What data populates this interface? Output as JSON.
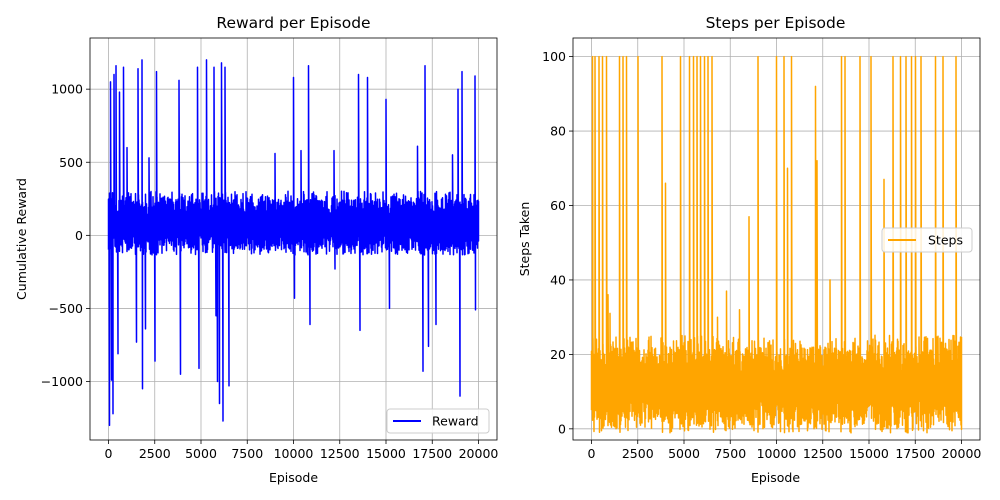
{
  "chart_data": [
    {
      "type": "line",
      "title": "Reward per Episode",
      "xlabel": "Episode",
      "ylabel": "Cumulative Reward",
      "xlim": [
        -1000,
        21000
      ],
      "ylim": [
        -1400,
        1350
      ],
      "xticks": [
        0,
        2500,
        5000,
        7500,
        10000,
        12500,
        15000,
        17500,
        20000
      ],
      "xtick_labels": [
        "0",
        "2500",
        "5000",
        "7500",
        "10000",
        "12500",
        "15000",
        "17500",
        "20000"
      ],
      "yticks": [
        -1000,
        -500,
        0,
        500,
        1000
      ],
      "ytick_labels": [
        "−1000",
        "−500",
        "0",
        "500",
        "1000"
      ],
      "grid": true,
      "legend_position": "lower-right",
      "series": [
        {
          "name": "Reward",
          "color": "#0000ff",
          "episodes": 20000,
          "typical_band": [
            -100,
            250
          ],
          "spikes": [
            {
              "x": 60,
              "y": -1300
            },
            {
              "x": 100,
              "y": 1050
            },
            {
              "x": 150,
              "y": -990
            },
            {
              "x": 250,
              "y": -1220
            },
            {
              "x": 300,
              "y": 1100
            },
            {
              "x": 400,
              "y": 1160
            },
            {
              "x": 500,
              "y": -810
            },
            {
              "x": 600,
              "y": 980
            },
            {
              "x": 800,
              "y": 1150
            },
            {
              "x": 1000,
              "y": 600
            },
            {
              "x": 1500,
              "y": -730
            },
            {
              "x": 1600,
              "y": 1140
            },
            {
              "x": 1800,
              "y": 1200
            },
            {
              "x": 1850,
              "y": -1050
            },
            {
              "x": 2000,
              "y": -640
            },
            {
              "x": 2200,
              "y": 530
            },
            {
              "x": 2500,
              "y": -860
            },
            {
              "x": 2600,
              "y": 1120
            },
            {
              "x": 3800,
              "y": 1060
            },
            {
              "x": 3900,
              "y": -950
            },
            {
              "x": 4800,
              "y": 1150
            },
            {
              "x": 4900,
              "y": -910
            },
            {
              "x": 5300,
              "y": 1200
            },
            {
              "x": 5700,
              "y": 1150
            },
            {
              "x": 5800,
              "y": -550
            },
            {
              "x": 5900,
              "y": -1000
            },
            {
              "x": 6000,
              "y": -1150
            },
            {
              "x": 6100,
              "y": 1180
            },
            {
              "x": 6200,
              "y": -1270
            },
            {
              "x": 6300,
              "y": 1150
            },
            {
              "x": 6500,
              "y": -1030
            },
            {
              "x": 9000,
              "y": 560
            },
            {
              "x": 10000,
              "y": 1080
            },
            {
              "x": 10050,
              "y": -430
            },
            {
              "x": 10400,
              "y": 580
            },
            {
              "x": 10800,
              "y": 1160
            },
            {
              "x": 10900,
              "y": -610
            },
            {
              "x": 12200,
              "y": 580
            },
            {
              "x": 12250,
              "y": -230
            },
            {
              "x": 13500,
              "y": 1100
            },
            {
              "x": 13600,
              "y": -650
            },
            {
              "x": 14000,
              "y": 1080
            },
            {
              "x": 15000,
              "y": 930
            },
            {
              "x": 15200,
              "y": -500
            },
            {
              "x": 16700,
              "y": 610
            },
            {
              "x": 17000,
              "y": -930
            },
            {
              "x": 17100,
              "y": 1160
            },
            {
              "x": 17300,
              "y": -760
            },
            {
              "x": 17700,
              "y": -610
            },
            {
              "x": 18600,
              "y": 550
            },
            {
              "x": 18900,
              "y": 1000
            },
            {
              "x": 19000,
              "y": -1100
            },
            {
              "x": 19100,
              "y": 1120
            },
            {
              "x": 19800,
              "y": 1090
            },
            {
              "x": 19850,
              "y": -510
            }
          ]
        }
      ]
    },
    {
      "type": "line",
      "title": "Steps per Episode",
      "xlabel": "Episode",
      "ylabel": "Steps Taken",
      "xlim": [
        -1000,
        21000
      ],
      "ylim": [
        -3,
        105
      ],
      "xticks": [
        0,
        2500,
        5000,
        7500,
        10000,
        12500,
        15000,
        17500,
        20000
      ],
      "xtick_labels": [
        "0",
        "2500",
        "5000",
        "7500",
        "10000",
        "12500",
        "15000",
        "17500",
        "20000"
      ],
      "yticks": [
        0,
        20,
        40,
        60,
        80,
        100
      ],
      "ytick_labels": [
        "0",
        "20",
        "40",
        "60",
        "80",
        "100"
      ],
      "grid": true,
      "legend_position": "center-right",
      "series": [
        {
          "name": "Steps",
          "color": "#ffa500",
          "episodes": 20000,
          "typical_band": [
            1,
            22
          ],
          "spikes": [
            {
              "x": 50,
              "y": 100
            },
            {
              "x": 200,
              "y": 100
            },
            {
              "x": 400,
              "y": 100
            },
            {
              "x": 600,
              "y": 100
            },
            {
              "x": 800,
              "y": 100
            },
            {
              "x": 900,
              "y": 36
            },
            {
              "x": 1000,
              "y": 31
            },
            {
              "x": 1500,
              "y": 100
            },
            {
              "x": 1700,
              "y": 100
            },
            {
              "x": 1900,
              "y": 100
            },
            {
              "x": 2500,
              "y": 100
            },
            {
              "x": 3800,
              "y": 100
            },
            {
              "x": 4000,
              "y": 66
            },
            {
              "x": 4800,
              "y": 100
            },
            {
              "x": 5300,
              "y": 100
            },
            {
              "x": 5500,
              "y": 100
            },
            {
              "x": 5700,
              "y": 100
            },
            {
              "x": 5900,
              "y": 100
            },
            {
              "x": 6100,
              "y": 100
            },
            {
              "x": 6300,
              "y": 100
            },
            {
              "x": 6500,
              "y": 100
            },
            {
              "x": 6800,
              "y": 30
            },
            {
              "x": 7300,
              "y": 37
            },
            {
              "x": 8000,
              "y": 32
            },
            {
              "x": 8500,
              "y": 57
            },
            {
              "x": 9000,
              "y": 100
            },
            {
              "x": 10000,
              "y": 100
            },
            {
              "x": 10400,
              "y": 100
            },
            {
              "x": 10600,
              "y": 70
            },
            {
              "x": 10800,
              "y": 100
            },
            {
              "x": 12100,
              "y": 92
            },
            {
              "x": 12200,
              "y": 72
            },
            {
              "x": 12900,
              "y": 40
            },
            {
              "x": 13500,
              "y": 100
            },
            {
              "x": 13700,
              "y": 100
            },
            {
              "x": 14500,
              "y": 100
            },
            {
              "x": 15100,
              "y": 100
            },
            {
              "x": 15800,
              "y": 67
            },
            {
              "x": 16300,
              "y": 100
            },
            {
              "x": 16700,
              "y": 100
            },
            {
              "x": 17000,
              "y": 100
            },
            {
              "x": 17300,
              "y": 100
            },
            {
              "x": 17500,
              "y": 100
            },
            {
              "x": 17800,
              "y": 100
            },
            {
              "x": 18600,
              "y": 100
            },
            {
              "x": 19000,
              "y": 100
            },
            {
              "x": 19700,
              "y": 100
            }
          ]
        }
      ]
    }
  ]
}
